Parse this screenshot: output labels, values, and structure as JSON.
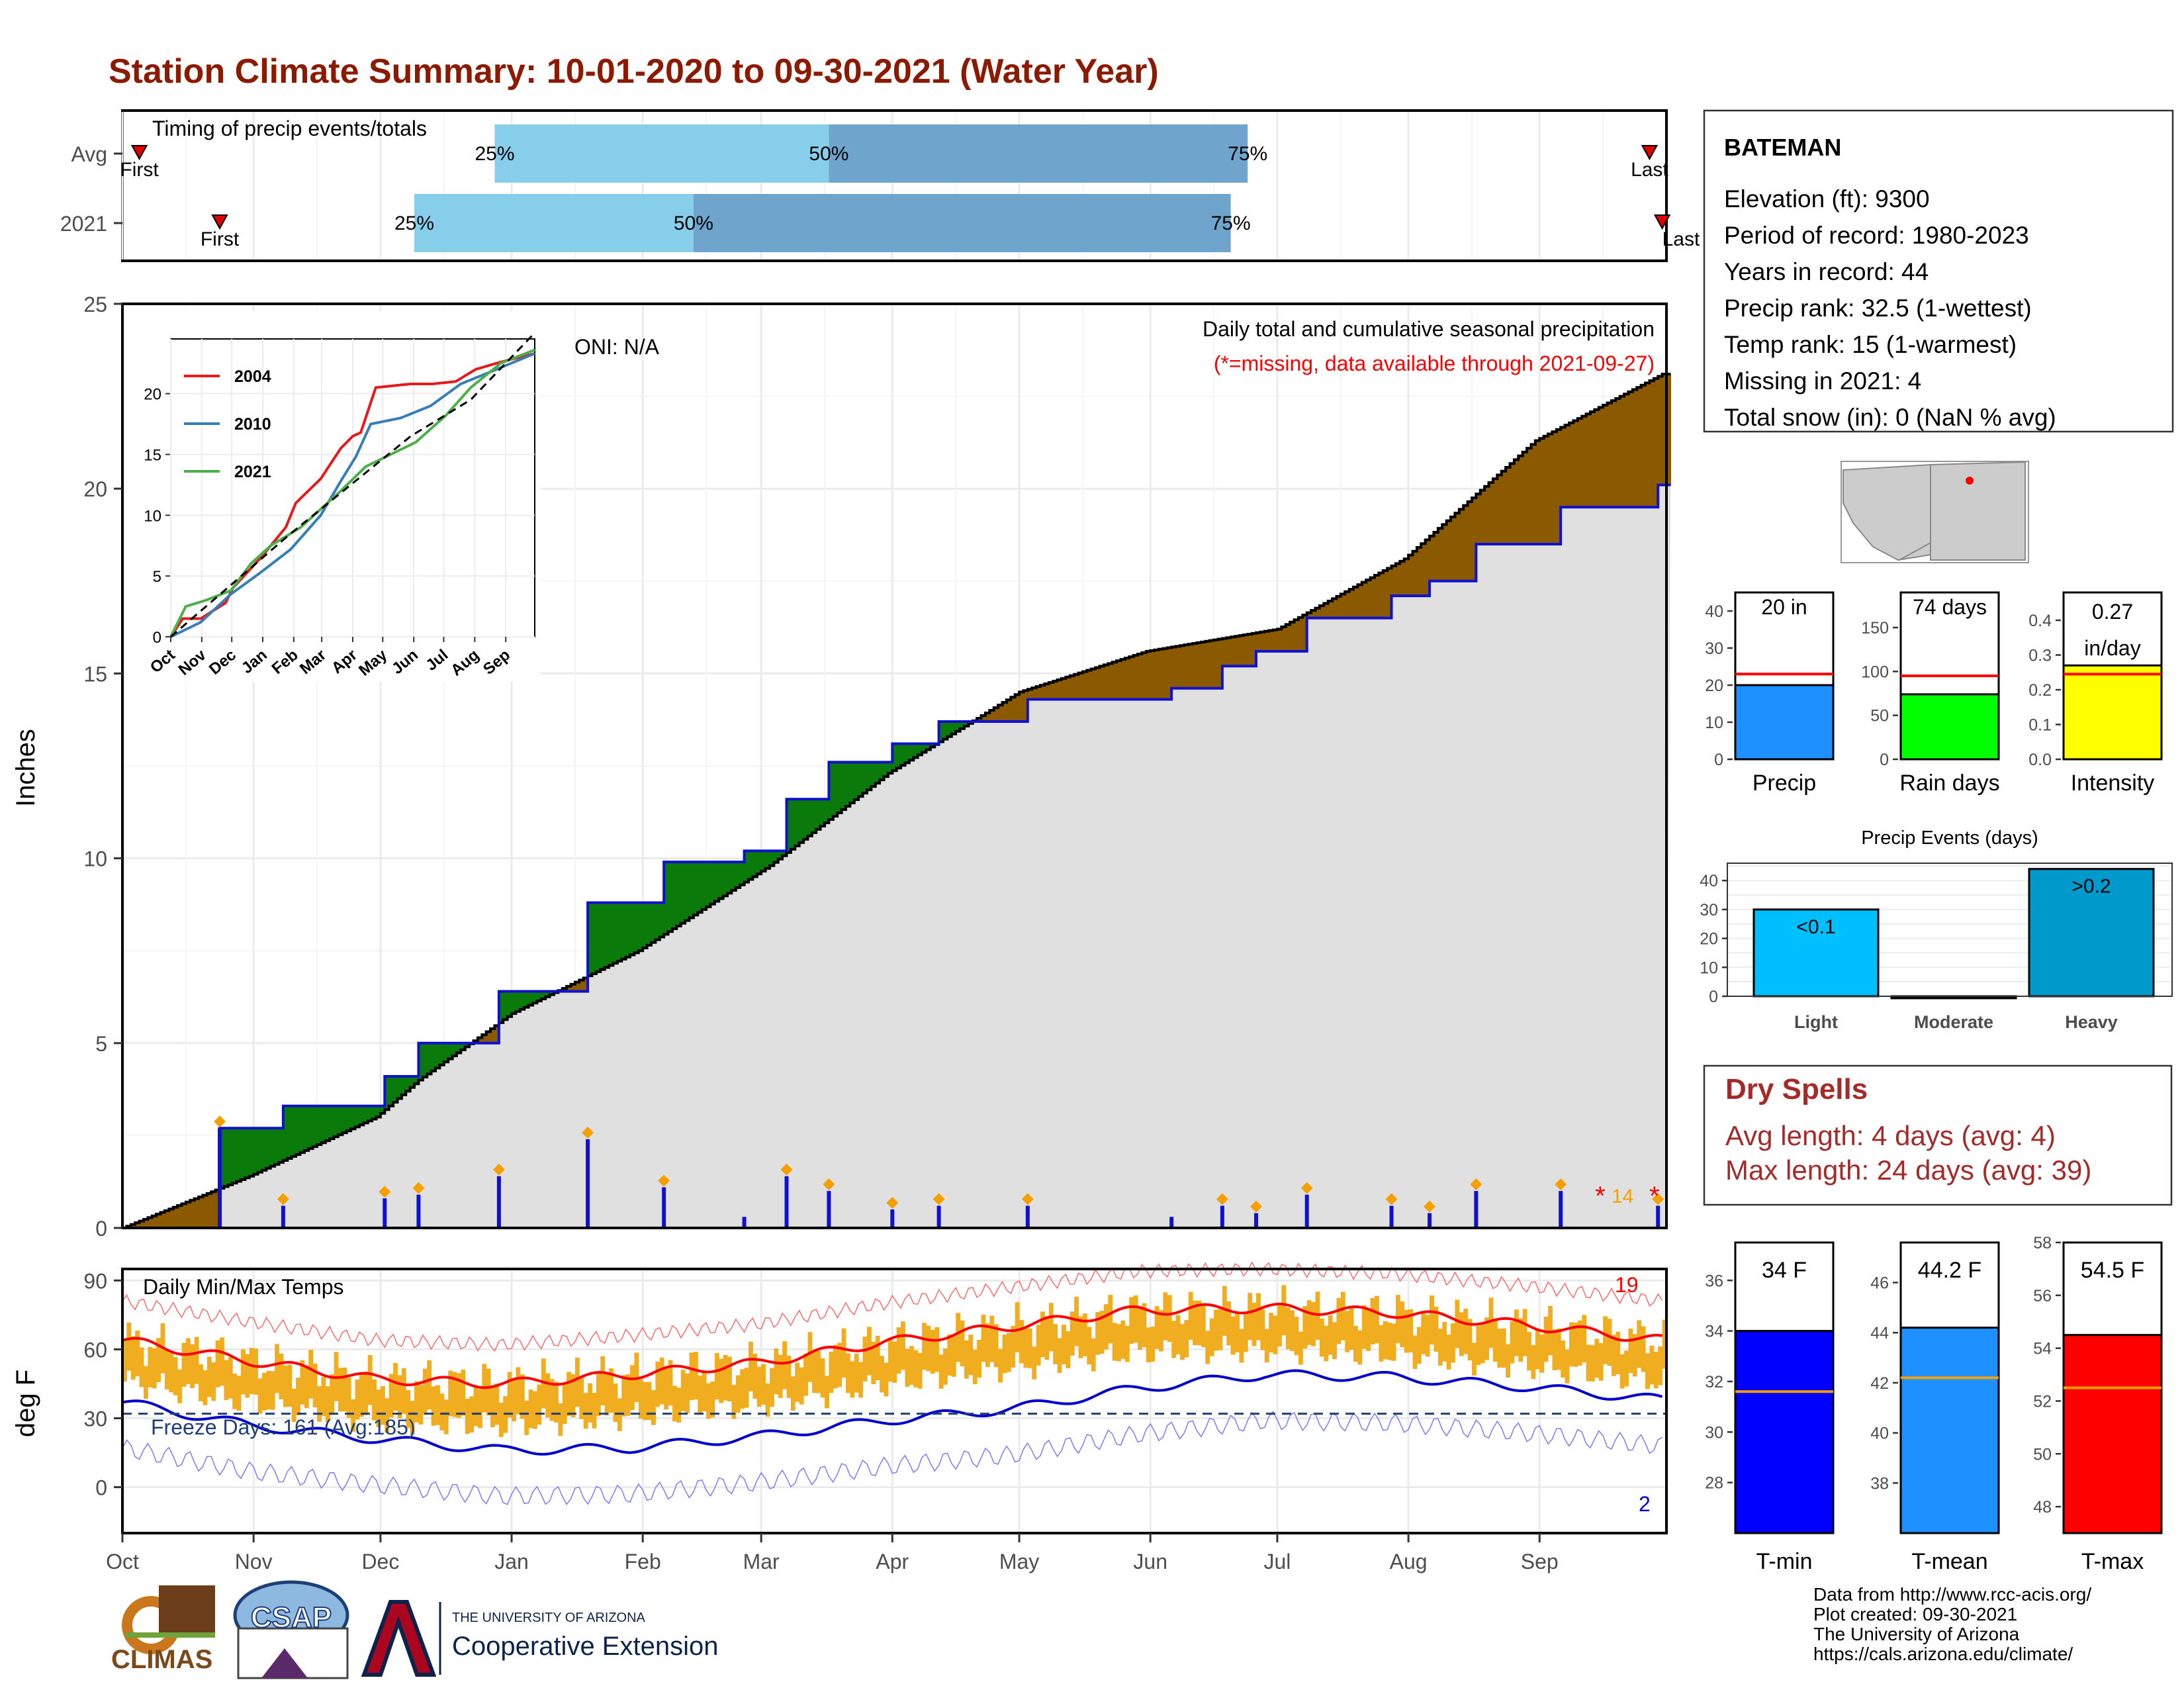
{
  "title": "Station Climate Summary: 10-01-2020 to 09-30-2021 (Water Year)",
  "months": [
    "Oct",
    "Nov",
    "Dec",
    "Jan",
    "Feb",
    "Mar",
    "Apr",
    "May",
    "Jun",
    "Jul",
    "Aug",
    "Sep"
  ],
  "colors": {
    "title": "#8b1a00",
    "band_light": "#87ceeb",
    "band_dark": "#6fa5cc",
    "above_fill": "#8b5a00",
    "below_fill": "#0a7a0a",
    "cum_fill": "#e0e0e0",
    "observed_line": "#1010d0",
    "tmax": "#ff0000",
    "tmin": "#0000cc",
    "temp_bars": "#f0ad20"
  },
  "timing": {
    "title": "Timing of precip events/totals",
    "rows": [
      {
        "label": "Avg",
        "first_label": "First",
        "last_label": "Last",
        "p25_label": "25%",
        "p50_label": "50%",
        "p75_label": "75%",
        "first_day": 4,
        "last_day": 361,
        "p25_day": 88,
        "p50_day": 167,
        "p75_day": 266
      },
      {
        "label": "2021",
        "first_label": "First",
        "last_label": "Last",
        "p25_label": "25%",
        "p50_label": "50%",
        "p75_label": "75%",
        "first_day": 23,
        "last_day": 364,
        "p25_day": 69,
        "p50_day": 135,
        "p75_day": 262
      }
    ]
  },
  "precip_panel": {
    "ylabel": "Inches",
    "yticks": [
      "0",
      "5",
      "10",
      "15",
      "20",
      "25"
    ],
    "ymax": 25,
    "note1": "Daily total and cumulative seasonal precipitation",
    "note2": "(*=missing, data available through 2021-09-27)",
    "oni": "ONI: N/A",
    "missing_count": "14",
    "missing_marker": "*"
  },
  "inset": {
    "yticks": [
      "0",
      "5",
      "10",
      "15",
      "20"
    ],
    "months": [
      "Oct",
      "Nov",
      "Dec",
      "Jan",
      "Feb",
      "Mar",
      "Apr",
      "May",
      "Jun",
      "Jul",
      "Aug",
      "Sep"
    ],
    "legend": [
      {
        "name": "2004",
        "color": "#e41a1c"
      },
      {
        "name": "2010",
        "color": "#377eb8"
      },
      {
        "name": "2021",
        "color": "#4daf4a"
      }
    ]
  },
  "temp_panel": {
    "ylabel": "deg F",
    "title": "Daily Min/Max Temps",
    "yticks": [
      "0",
      "30",
      "60",
      "90"
    ],
    "freeze": "Freeze Days: 161 (Avg:185)",
    "hot_count": "19",
    "cold_count": "2"
  },
  "station": {
    "name": "BATEMAN",
    "lines": [
      "Elevation (ft): 9300",
      "Period of record: 1980-2023",
      "Years in record: 44",
      "Precip rank: 32.5 (1-wettest)",
      "Temp rank: 15 (1-warmest)",
      "Missing in 2021: 4",
      "Total snow (in): 0 (NaN % avg)"
    ]
  },
  "summary_bars": [
    {
      "name": "Precip",
      "value_label": "20 in",
      "value": 20,
      "avg": 23,
      "ymax": 45,
      "ticks": [
        "0",
        "10",
        "20",
        "30",
        "40"
      ],
      "tickvals": [
        0,
        10,
        20,
        30,
        40
      ],
      "color": "#1e90ff"
    },
    {
      "name": "Rain days",
      "value_label": "74 days",
      "value": 74,
      "avg": 95,
      "ymax": 190,
      "ticks": [
        "0",
        "50",
        "100",
        "150"
      ],
      "tickvals": [
        0,
        50,
        100,
        150
      ],
      "color": "#00ff00"
    },
    {
      "name": "Intensity",
      "value_label": "0.27 in/day",
      "value": 0.27,
      "avg": 0.245,
      "ymax": 0.48,
      "ticks": [
        "0.0",
        "0.1",
        "0.2",
        "0.3",
        "0.4"
      ],
      "tickvals": [
        0,
        0.1,
        0.2,
        0.3,
        0.4
      ],
      "color": "#ffff00"
    }
  ],
  "events": {
    "title": "Precip Events (days)",
    "ticks": [
      "0",
      "10",
      "20",
      "30",
      "40"
    ],
    "bars": [
      {
        "name": "Light",
        "label": "<0.1",
        "value": 30,
        "color": "#00bfff"
      },
      {
        "name": "Moderate",
        "label": "",
        "value": 0,
        "color": "#00bfff"
      },
      {
        "name": "Heavy",
        "label": ">0.2",
        "value": 44,
        "color": "#0099cc"
      }
    ]
  },
  "dry_spells": {
    "title": "Dry Spells",
    "avg_line": "Avg length: 4 days (avg: 4)",
    "max_line": "Max length: 24 days (avg: 39)"
  },
  "temp_bars": [
    {
      "name": "T-min",
      "value_label": "34 F",
      "value": 34,
      "avg": 31.6,
      "ymin": 26,
      "ymax": 37.5,
      "ticks": [
        "28",
        "30",
        "32",
        "34",
        "36"
      ],
      "tickvals": [
        28,
        30,
        32,
        34,
        36
      ],
      "color": "#0000ff"
    },
    {
      "name": "T-mean",
      "value_label": "44.2 F",
      "value": 44.2,
      "avg": 42.2,
      "ymin": 36,
      "ymax": 47.6,
      "ticks": [
        "38",
        "40",
        "42",
        "44",
        "46"
      ],
      "tickvals": [
        38,
        40,
        42,
        44,
        46
      ],
      "color": "#1e90ff"
    },
    {
      "name": "T-max",
      "value_label": "54.5 F",
      "value": 54.5,
      "avg": 52.5,
      "ymin": 47,
      "ymax": 58,
      "ticks": [
        "48",
        "50",
        "52",
        "54",
        "56",
        "58"
      ],
      "tickvals": [
        48,
        50,
        52,
        54,
        56,
        58
      ],
      "color": "#ff0000"
    }
  ],
  "footer": {
    "lines": [
      "Data from http://www.rcc-acis.org/",
      "Plot created: 09-30-2021",
      "The University of Arizona",
      "https://cals.arizona.edu/climate/"
    ],
    "climas": "CLIMAS",
    "csap": "CSAP",
    "ua_small": "THE UNIVERSITY OF ARIZONA",
    "ua_big": "Cooperative Extension"
  },
  "chart_data": [
    {
      "type": "line",
      "title": "Daily total and cumulative seasonal precipitation",
      "ylabel": "Inches",
      "ylim": [
        0,
        25
      ],
      "x_unit": "day of water year",
      "series": [
        {
          "name": "Avg",
          "x": [
            0,
            30,
            60,
            70,
            92,
            122,
            153,
            181,
            212,
            242,
            273,
            303,
            334,
            364
          ],
          "values": [
            0,
            1.4,
            3.0,
            4.0,
            5.8,
            7.5,
            9.8,
            12.3,
            14.5,
            15.6,
            16.2,
            18.1,
            21.3,
            23.1
          ]
        },
        {
          "name": "2021",
          "x": [
            0,
            22,
            23,
            38,
            62,
            70,
            89,
            110,
            128,
            147,
            157,
            167,
            182,
            193,
            214,
            248,
            260,
            268,
            280,
            300,
            309,
            320,
            340,
            363
          ],
          "values": [
            0,
            0,
            2.7,
            3.3,
            4.1,
            5.0,
            6.4,
            8.8,
            9.9,
            10.2,
            11.6,
            12.6,
            13.1,
            13.7,
            14.3,
            14.6,
            15.2,
            15.6,
            16.5,
            17.1,
            17.5,
            18.5,
            19.5,
            20.1
          ]
        }
      ]
    },
    {
      "type": "line",
      "title": "Daily Min/Max Temps",
      "ylabel": "deg F",
      "ylim": [
        -20,
        95
      ],
      "x_unit": "day of water year",
      "series": [
        {
          "name": "Avg max",
          "x": [
            0,
            30,
            60,
            90,
            120,
            150,
            180,
            210,
            240,
            270,
            300,
            330,
            364
          ],
          "values": [
            64,
            55,
            47,
            45,
            49,
            54,
            63,
            70,
            77,
            78,
            76,
            71,
            64
          ]
        },
        {
          "name": "Avg min",
          "x": [
            0,
            30,
            60,
            90,
            120,
            150,
            180,
            210,
            240,
            270,
            300,
            330,
            364
          ],
          "values": [
            37,
            27,
            21,
            16,
            17,
            22,
            29,
            34,
            43,
            49,
            48,
            44,
            38
          ]
        }
      ]
    }
  ]
}
